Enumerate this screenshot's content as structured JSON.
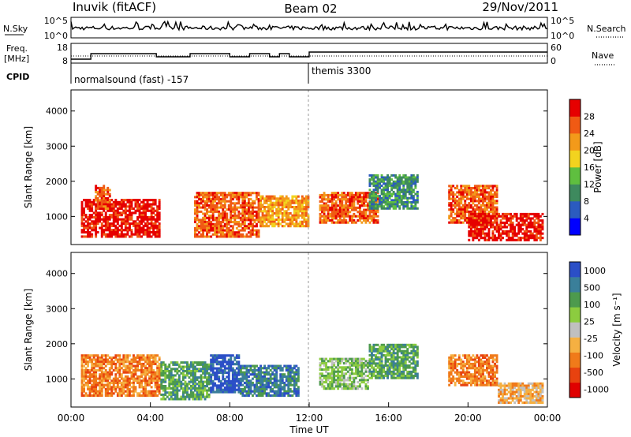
{
  "header": {
    "station": "Inuvik (fitACF)",
    "beam": "Beam 02",
    "date": "29/Nov/2011"
  },
  "top_panels": {
    "nsky_label": "N.Sky",
    "nsky_ticks": [
      "10^5",
      "10^0"
    ],
    "nsearch_label": "N.Search",
    "nsearch_ticks": [
      "10^5",
      "10^0"
    ],
    "freq_label_1": "Freq.",
    "freq_label_2": "[MHz]",
    "freq_ticks": [
      "18",
      "8"
    ],
    "nave_label": "Nave",
    "nave_ticks": [
      "60",
      "0"
    ],
    "cpid_label": "CPID",
    "cpid_segments": [
      {
        "label": "normalsound (fast) -157",
        "start_hour": 0,
        "end_hour": 12
      },
      {
        "label": "themis 3300",
        "start_hour": 12,
        "end_hour": 24
      }
    ]
  },
  "chart_data": [
    {
      "type": "heatmap",
      "quantity": "power",
      "ylabel": "Slant Range [km]",
      "yticks": [
        "1000",
        "2000",
        "3000",
        "4000"
      ],
      "ylim": [
        200,
        4600
      ],
      "xlim": [
        0,
        24
      ],
      "colorbar_label": "Power [dB]",
      "colorbar_ticks": [
        "4",
        "8",
        "12",
        "16",
        "20",
        "24",
        "28"
      ],
      "colors": [
        "#0000ff",
        "#2b5bbf",
        "#3e8a5e",
        "#5fbf3f",
        "#f2d31f",
        "#f39a1a",
        "#f05a14",
        "#e60000"
      ],
      "regions": [
        {
          "start_hour": 0.5,
          "end_hour": 4.5,
          "range_min": 400,
          "range_max": 1500,
          "level": 7
        },
        {
          "start_hour": 1.2,
          "end_hour": 2.0,
          "range_min": 1200,
          "range_max": 1900,
          "level": 6
        },
        {
          "start_hour": 6.2,
          "end_hour": 9.5,
          "range_min": 400,
          "range_max": 1700,
          "level": 6
        },
        {
          "start_hour": 9.5,
          "end_hour": 12.0,
          "range_min": 700,
          "range_max": 1600,
          "level": 5
        },
        {
          "start_hour": 12.5,
          "end_hour": 15.5,
          "range_min": 800,
          "range_max": 1700,
          "level": 6
        },
        {
          "start_hour": 15.0,
          "end_hour": 17.5,
          "range_min": 1200,
          "range_max": 2200,
          "level": 2
        },
        {
          "start_hour": 19.0,
          "end_hour": 21.5,
          "range_min": 800,
          "range_max": 1900,
          "level": 6
        },
        {
          "start_hour": 20.0,
          "end_hour": 23.8,
          "range_min": 300,
          "range_max": 1100,
          "level": 7
        }
      ]
    },
    {
      "type": "heatmap",
      "quantity": "velocity",
      "ylabel": "Slant Range [km]",
      "yticks": [
        "1000",
        "2000",
        "3000",
        "4000"
      ],
      "ylim": [
        200,
        4600
      ],
      "xlim": [
        0,
        24
      ],
      "xlabel": "Time UT",
      "xticks": [
        "00:00",
        "04:00",
        "08:00",
        "12:00",
        "16:00",
        "20:00",
        "00:00"
      ],
      "colorbar_label": "Velocity [m s⁻¹]",
      "colorbar_ticks": [
        "1000",
        "500",
        "100",
        "25",
        "-25",
        "-100",
        "-500",
        "-1000"
      ],
      "colors": [
        "#2b4fc7",
        "#3a7f9a",
        "#4d9a4d",
        "#8ccc3f",
        "#c0c0c0",
        "#f5b042",
        "#f07a1a",
        "#e8420f",
        "#e00000"
      ],
      "regions": [
        {
          "start_hour": 0.5,
          "end_hour": 4.5,
          "range_min": 500,
          "range_max": 1700,
          "level": 6
        },
        {
          "start_hour": 4.5,
          "end_hour": 7.0,
          "range_min": 400,
          "range_max": 1500,
          "level": 2
        },
        {
          "start_hour": 7.0,
          "end_hour": 8.5,
          "range_min": 600,
          "range_max": 1700,
          "level": 0
        },
        {
          "start_hour": 8.5,
          "end_hour": 11.5,
          "range_min": 500,
          "range_max": 1400,
          "level": 1
        },
        {
          "start_hour": 12.5,
          "end_hour": 15.0,
          "range_min": 700,
          "range_max": 1600,
          "level": 3
        },
        {
          "start_hour": 15.0,
          "end_hour": 17.5,
          "range_min": 1000,
          "range_max": 2000,
          "level": 2
        },
        {
          "start_hour": 19.0,
          "end_hour": 21.5,
          "range_min": 800,
          "range_max": 1700,
          "level": 6
        },
        {
          "start_hour": 21.5,
          "end_hour": 23.8,
          "range_min": 300,
          "range_max": 900,
          "level": 5
        }
      ]
    }
  ]
}
